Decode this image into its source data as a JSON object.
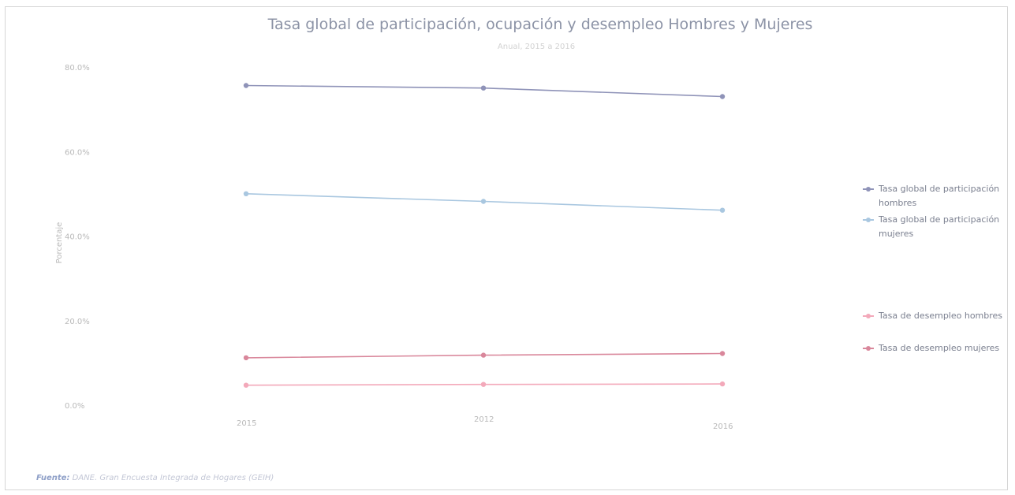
{
  "chart_data": {
    "type": "line",
    "title": "Tasa global de participación, ocupación y desempleo Hombres y Mujeres",
    "subtitle": "Anual, 2015 a 2016",
    "ylabel": "Porcentaje",
    "xlabel": "",
    "x": [
      "2015",
      "2012",
      "2016"
    ],
    "y_ticks": [
      "0.0%",
      "20.0%",
      "40.0%",
      "60.0%",
      "80.0%"
    ],
    "ylim": [
      0,
      80
    ],
    "legend_position": "right",
    "series": [
      {
        "name": "Tasa global de participación hombres",
        "values": [
          75.8,
          75.2,
          73.2
        ],
        "color": "#8f93b8"
      },
      {
        "name": "Tasa global de participación mujeres",
        "values": [
          50.2,
          48.4,
          46.3
        ],
        "color": "#a9c7e0"
      },
      {
        "name": "Tasa de desempleo hombres",
        "values": [
          4.9,
          5.1,
          5.2
        ],
        "color": "#f3a9ba"
      },
      {
        "name": "Tasa de desempleo mujeres",
        "values": [
          11.4,
          12.0,
          12.4
        ],
        "color": "#d9879b"
      }
    ]
  },
  "source": {
    "label": "Fuente:",
    "text": "DANE. Gran Encuesta Integrada de Hogares (GEIH)"
  }
}
